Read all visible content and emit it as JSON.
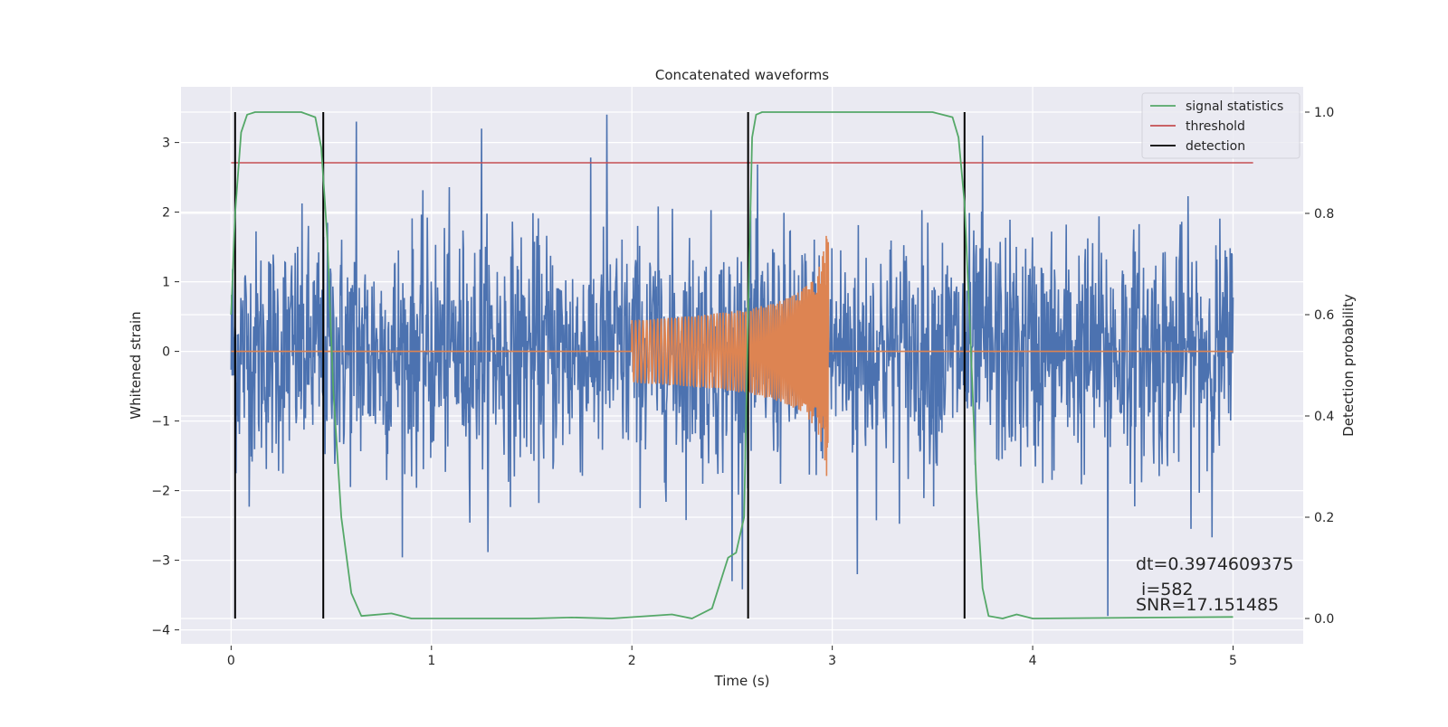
{
  "chart_data": {
    "type": "line",
    "title": "Concatenated waveforms",
    "xlabel": "Time (s)",
    "ylabel": "Whitened strain",
    "y2label": "Detection probability",
    "xlim": [
      -0.25,
      5.35
    ],
    "ylim": [
      -4.2,
      3.8
    ],
    "y2lim": [
      -0.05,
      1.05
    ],
    "xticks": [
      "0",
      "1",
      "2",
      "3",
      "4",
      "5"
    ],
    "yticks": [
      "−4",
      "−3",
      "−2",
      "−1",
      "0",
      "1",
      "2",
      "3"
    ],
    "y2ticks": [
      "0.0",
      "0.2",
      "0.4",
      "0.6",
      "0.8",
      "1.0"
    ],
    "grid": true,
    "background": "#eaeaf2",
    "legend_position": "upper right",
    "series": [
      {
        "name": "signal statistics",
        "color": "#55a868",
        "axis": "right",
        "x": [
          0.0,
          0.02,
          0.05,
          0.08,
          0.12,
          0.35,
          0.42,
          0.45,
          0.48,
          0.51,
          0.55,
          0.6,
          0.65,
          0.8,
          0.9,
          1.5,
          1.7,
          1.9,
          2.2,
          2.3,
          2.4,
          2.44,
          2.48,
          2.52,
          2.56,
          2.58,
          2.6,
          2.62,
          2.65,
          3.5,
          3.6,
          3.63,
          3.66,
          3.69,
          3.72,
          3.75,
          3.78,
          3.85,
          3.92,
          4.0,
          5.0
        ],
        "values": [
          0.6,
          0.8,
          0.96,
          0.995,
          1.0,
          1.0,
          0.99,
          0.93,
          0.75,
          0.45,
          0.2,
          0.05,
          0.005,
          0.01,
          0.0,
          0.0,
          0.002,
          0.0,
          0.008,
          0.0,
          0.02,
          0.07,
          0.12,
          0.13,
          0.2,
          0.6,
          0.95,
          0.995,
          1.0,
          1.0,
          0.99,
          0.95,
          0.82,
          0.55,
          0.25,
          0.06,
          0.005,
          0.0,
          0.008,
          0.0,
          0.003
        ]
      },
      {
        "name": "threshold",
        "color": "#c44e52",
        "axis": "right",
        "x": [
          0.0,
          5.1
        ],
        "values": [
          0.9,
          0.9
        ]
      },
      {
        "name": "detection",
        "color": "#000000",
        "axis": "right",
        "x": [
          0.02,
          0.46,
          2.58,
          3.66
        ],
        "y_range": [
          0.0,
          1.0
        ]
      },
      {
        "name": "",
        "color": "#4c72b0",
        "axis": "left",
        "kind": "noise",
        "x_range": [
          0.0,
          5.0
        ],
        "peak_values": [
          3.3,
          3.2,
          3.4,
          -3.3,
          -3.2,
          3.1,
          -3.8
        ]
      },
      {
        "name": "",
        "color": "#dd8452",
        "axis": "left",
        "kind": "chirp",
        "x_range": [
          0.0,
          5.0
        ],
        "chirp_start": 2.0,
        "chirp_end": 2.98,
        "start_amplitude": 0.45,
        "end_amplitude": 1.8
      }
    ],
    "annotations": [
      "dt=0.3974609375",
      " i=582",
      "SNR=17.151485"
    ]
  }
}
